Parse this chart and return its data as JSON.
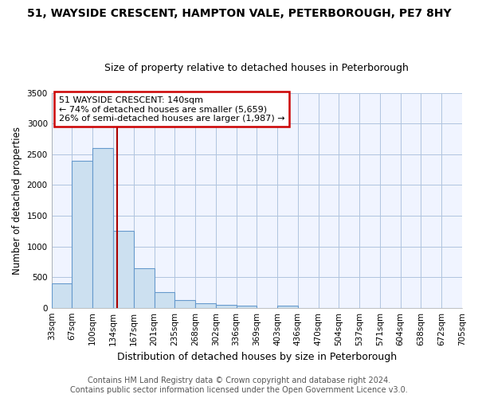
{
  "title": "51, WAYSIDE CRESCENT, HAMPTON VALE, PETERBOROUGH, PE7 8HY",
  "subtitle": "Size of property relative to detached houses in Peterborough",
  "xlabel": "Distribution of detached houses by size in Peterborough",
  "ylabel": "Number of detached properties",
  "footer_line1": "Contains HM Land Registry data © Crown copyright and database right 2024.",
  "footer_line2": "Contains public sector information licensed under the Open Government Licence v3.0.",
  "bin_labels": [
    "33sqm",
    "67sqm",
    "100sqm",
    "134sqm",
    "167sqm",
    "201sqm",
    "235sqm",
    "268sqm",
    "302sqm",
    "336sqm",
    "369sqm",
    "403sqm",
    "436sqm",
    "470sqm",
    "504sqm",
    "537sqm",
    "571sqm",
    "604sqm",
    "638sqm",
    "672sqm",
    "705sqm"
  ],
  "bar_values": [
    400,
    2400,
    2600,
    1250,
    650,
    260,
    120,
    70,
    50,
    35,
    0,
    35,
    0,
    0,
    0,
    0,
    0,
    0,
    0,
    0
  ],
  "bar_color": "#cce0f0",
  "bar_edge_color": "#6699cc",
  "ylim": [
    0,
    3500
  ],
  "yticks": [
    0,
    500,
    1000,
    1500,
    2000,
    2500,
    3000,
    3500
  ],
  "vline_x_bin": 3,
  "vline_x_offset": 0.18,
  "vline_color": "#aa0000",
  "annotation_text": "51 WAYSIDE CRESCENT: 140sqm\n← 74% of detached houses are smaller (5,659)\n26% of semi-detached houses are larger (1,987) →",
  "annotation_box_color": "#cc0000",
  "title_fontsize": 10,
  "subtitle_fontsize": 9,
  "xlabel_fontsize": 9,
  "ylabel_fontsize": 8.5,
  "tick_fontsize": 7.5,
  "footer_fontsize": 7,
  "annotation_fontsize": 8
}
